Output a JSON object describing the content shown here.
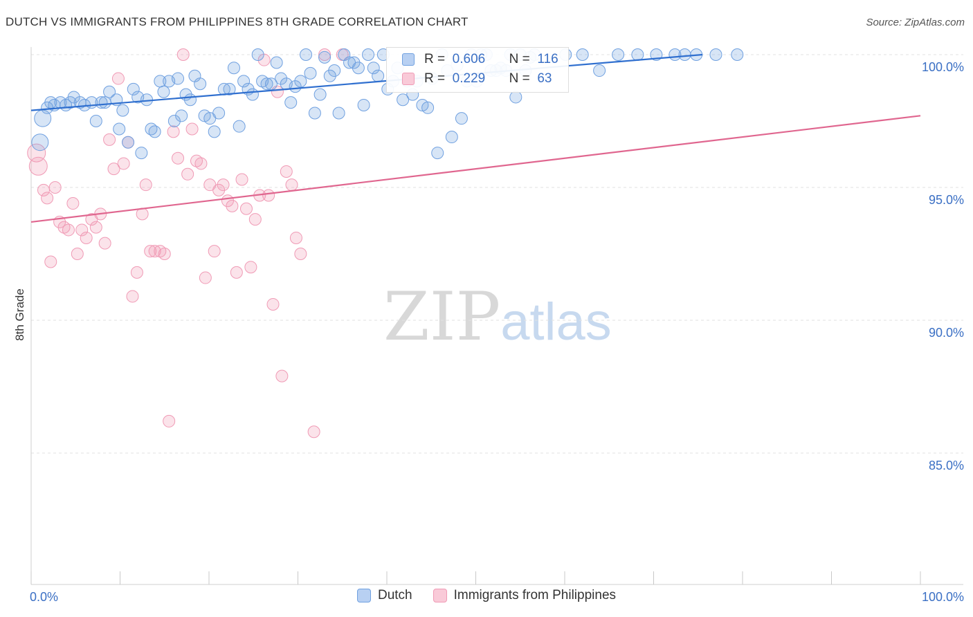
{
  "title": "DUTCH VS IMMIGRANTS FROM PHILIPPINES 8TH GRADE CORRELATION CHART",
  "source": "Source: ZipAtlas.com",
  "watermark": {
    "zip": "ZIP",
    "atlas": "atlas"
  },
  "stats": {
    "dutch": {
      "r_label": "R =",
      "r": "0.606",
      "n_label": "N =",
      "n": "116"
    },
    "philippines": {
      "r_label": "R =",
      "r": "0.229",
      "n_label": "N =",
      "n": "63"
    }
  },
  "colors": {
    "dutch": "#6fa0e0",
    "dutch_line": "#2f6fcf",
    "philippines": "#f09ab5",
    "philippines_line": "#e0668f",
    "axis_label": "#3a6fc4"
  },
  "chart_data": {
    "type": "scatter",
    "title": "DUTCH VS IMMIGRANTS FROM PHILIPPINES 8TH GRADE CORRELATION CHART",
    "xlabel": "",
    "ylabel": "8th Grade",
    "xlim": [
      0,
      100
    ],
    "ylim": [
      80,
      100.8
    ],
    "x_ticks": [
      "0.0%",
      "100.0%"
    ],
    "y_ticks": [
      {
        "value": 100,
        "label": "100.0%"
      },
      {
        "value": 95,
        "label": "95.0%"
      },
      {
        "value": 90,
        "label": "90.0%"
      },
      {
        "value": 85,
        "label": "85.0%"
      }
    ],
    "legend": [
      "Dutch",
      "Immigrants from Philippines"
    ],
    "legend_position": "bottom",
    "series": [
      {
        "name": "Dutch",
        "trend": [
          [
            0,
            97.9
          ],
          [
            75.5,
            100.0
          ]
        ],
        "points": [
          [
            1.3,
            97.6
          ],
          [
            1.0,
            96.7
          ],
          [
            1.8,
            98.0
          ],
          [
            2.2,
            98.2
          ],
          [
            2.6,
            98.1
          ],
          [
            3.3,
            98.2
          ],
          [
            3.9,
            98.1
          ],
          [
            4.4,
            98.2
          ],
          [
            4.8,
            98.4
          ],
          [
            5.5,
            98.2
          ],
          [
            6.0,
            98.1
          ],
          [
            6.8,
            98.2
          ],
          [
            7.3,
            97.5
          ],
          [
            7.9,
            98.2
          ],
          [
            8.3,
            98.2
          ],
          [
            8.8,
            98.6
          ],
          [
            9.6,
            98.3
          ],
          [
            9.9,
            97.2
          ],
          [
            10.3,
            97.9
          ],
          [
            10.9,
            96.7
          ],
          [
            11.5,
            98.7
          ],
          [
            12.0,
            98.4
          ],
          [
            12.4,
            96.3
          ],
          [
            13.0,
            98.3
          ],
          [
            13.5,
            97.2
          ],
          [
            13.9,
            97.1
          ],
          [
            14.5,
            99.0
          ],
          [
            14.9,
            98.6
          ],
          [
            15.5,
            99.0
          ],
          [
            16.1,
            97.5
          ],
          [
            16.5,
            99.1
          ],
          [
            16.9,
            97.7
          ],
          [
            17.4,
            98.5
          ],
          [
            17.9,
            98.3
          ],
          [
            18.4,
            99.2
          ],
          [
            19.0,
            98.9
          ],
          [
            19.5,
            97.7
          ],
          [
            20.1,
            97.6
          ],
          [
            20.6,
            97.1
          ],
          [
            21.1,
            97.8
          ],
          [
            21.7,
            98.7
          ],
          [
            22.3,
            98.7
          ],
          [
            22.8,
            99.5
          ],
          [
            23.4,
            97.3
          ],
          [
            23.9,
            99.0
          ],
          [
            24.4,
            98.7
          ],
          [
            24.9,
            98.5
          ],
          [
            25.5,
            100.0
          ],
          [
            26.0,
            99.0
          ],
          [
            26.5,
            98.9
          ],
          [
            27.0,
            98.9
          ],
          [
            27.6,
            99.7
          ],
          [
            28.1,
            99.1
          ],
          [
            28.7,
            98.9
          ],
          [
            29.2,
            98.2
          ],
          [
            29.7,
            98.8
          ],
          [
            30.3,
            99.0
          ],
          [
            30.9,
            100.0
          ],
          [
            31.4,
            99.3
          ],
          [
            31.9,
            97.8
          ],
          [
            32.5,
            98.5
          ],
          [
            33.0,
            99.9
          ],
          [
            33.6,
            99.2
          ],
          [
            34.1,
            99.4
          ],
          [
            34.6,
            97.8
          ],
          [
            35.2,
            100.0
          ],
          [
            35.8,
            99.7
          ],
          [
            36.3,
            99.7
          ],
          [
            36.8,
            99.5
          ],
          [
            37.4,
            98.1
          ],
          [
            37.9,
            100.0
          ],
          [
            38.5,
            99.5
          ],
          [
            39.0,
            99.2
          ],
          [
            39.6,
            100.0
          ],
          [
            40.1,
            98.7
          ],
          [
            40.7,
            99.0
          ],
          [
            41.2,
            99.5
          ],
          [
            41.8,
            98.3
          ],
          [
            42.3,
            99.0
          ],
          [
            42.9,
            98.5
          ],
          [
            43.4,
            99.0
          ],
          [
            44.0,
            98.1
          ],
          [
            44.6,
            98.0
          ],
          [
            45.1,
            99.1
          ],
          [
            45.7,
            96.3
          ],
          [
            46.2,
            100.0
          ],
          [
            46.8,
            99.4
          ],
          [
            47.3,
            96.9
          ],
          [
            47.9,
            99.6
          ],
          [
            48.4,
            97.6
          ],
          [
            49.0,
            99.0
          ],
          [
            49.5,
            100.0
          ],
          [
            50.1,
            99.0
          ],
          [
            50.6,
            100.0
          ],
          [
            51.2,
            100.0
          ],
          [
            51.7,
            99.4
          ],
          [
            52.3,
            99.4
          ],
          [
            52.8,
            99.5
          ],
          [
            53.4,
            99.4
          ],
          [
            53.9,
            100.0
          ],
          [
            54.5,
            98.4
          ],
          [
            55.0,
            100.0
          ],
          [
            55.6,
            99.4
          ],
          [
            56.1,
            99.9
          ],
          [
            56.6,
            100.0
          ],
          [
            60.1,
            100.0
          ],
          [
            62.0,
            100.0
          ],
          [
            63.9,
            99.4
          ],
          [
            66.0,
            100.0
          ],
          [
            68.2,
            100.0
          ],
          [
            70.3,
            100.0
          ],
          [
            72.4,
            100.0
          ],
          [
            73.5,
            100.0
          ],
          [
            74.8,
            100.0
          ],
          [
            77.0,
            100.0
          ],
          [
            79.4,
            100.0
          ]
        ]
      },
      {
        "name": "Immigrants from Philippines",
        "trend": [
          [
            0,
            93.7
          ],
          [
            100,
            97.7
          ]
        ],
        "points": [
          [
            0.6,
            96.3
          ],
          [
            0.8,
            95.8
          ],
          [
            1.4,
            94.9
          ],
          [
            1.8,
            94.6
          ],
          [
            2.2,
            92.2
          ],
          [
            2.7,
            95.0
          ],
          [
            3.2,
            93.7
          ],
          [
            3.7,
            93.5
          ],
          [
            4.2,
            93.4
          ],
          [
            4.7,
            94.4
          ],
          [
            5.2,
            92.5
          ],
          [
            5.7,
            93.4
          ],
          [
            6.2,
            93.1
          ],
          [
            6.8,
            93.8
          ],
          [
            7.3,
            93.5
          ],
          [
            7.8,
            94.0
          ],
          [
            8.3,
            92.9
          ],
          [
            8.8,
            96.8
          ],
          [
            9.3,
            95.7
          ],
          [
            9.8,
            99.1
          ],
          [
            10.4,
            95.9
          ],
          [
            10.9,
            96.7
          ],
          [
            11.4,
            90.9
          ],
          [
            11.9,
            91.8
          ],
          [
            12.5,
            94.0
          ],
          [
            12.9,
            95.1
          ],
          [
            13.4,
            92.6
          ],
          [
            13.9,
            92.6
          ],
          [
            14.5,
            92.6
          ],
          [
            15.0,
            92.5
          ],
          [
            15.5,
            86.2
          ],
          [
            16.0,
            97.1
          ],
          [
            16.5,
            96.1
          ],
          [
            17.1,
            100.0
          ],
          [
            17.6,
            95.5
          ],
          [
            18.1,
            97.2
          ],
          [
            18.6,
            96.0
          ],
          [
            19.1,
            95.9
          ],
          [
            19.6,
            91.6
          ],
          [
            20.1,
            95.1
          ],
          [
            20.6,
            92.6
          ],
          [
            21.1,
            94.9
          ],
          [
            21.6,
            95.1
          ],
          [
            22.1,
            94.5
          ],
          [
            22.6,
            94.3
          ],
          [
            23.1,
            91.8
          ],
          [
            23.7,
            95.3
          ],
          [
            24.2,
            94.2
          ],
          [
            24.7,
            92.0
          ],
          [
            25.2,
            93.8
          ],
          [
            25.7,
            94.7
          ],
          [
            26.2,
            99.8
          ],
          [
            26.7,
            94.7
          ],
          [
            27.2,
            90.6
          ],
          [
            27.7,
            98.6
          ],
          [
            28.2,
            87.9
          ],
          [
            28.7,
            95.6
          ],
          [
            29.3,
            95.1
          ],
          [
            29.8,
            93.1
          ],
          [
            30.3,
            92.5
          ],
          [
            31.8,
            85.8
          ],
          [
            33.0,
            100.0
          ],
          [
            35.0,
            100.0
          ]
        ]
      }
    ]
  }
}
